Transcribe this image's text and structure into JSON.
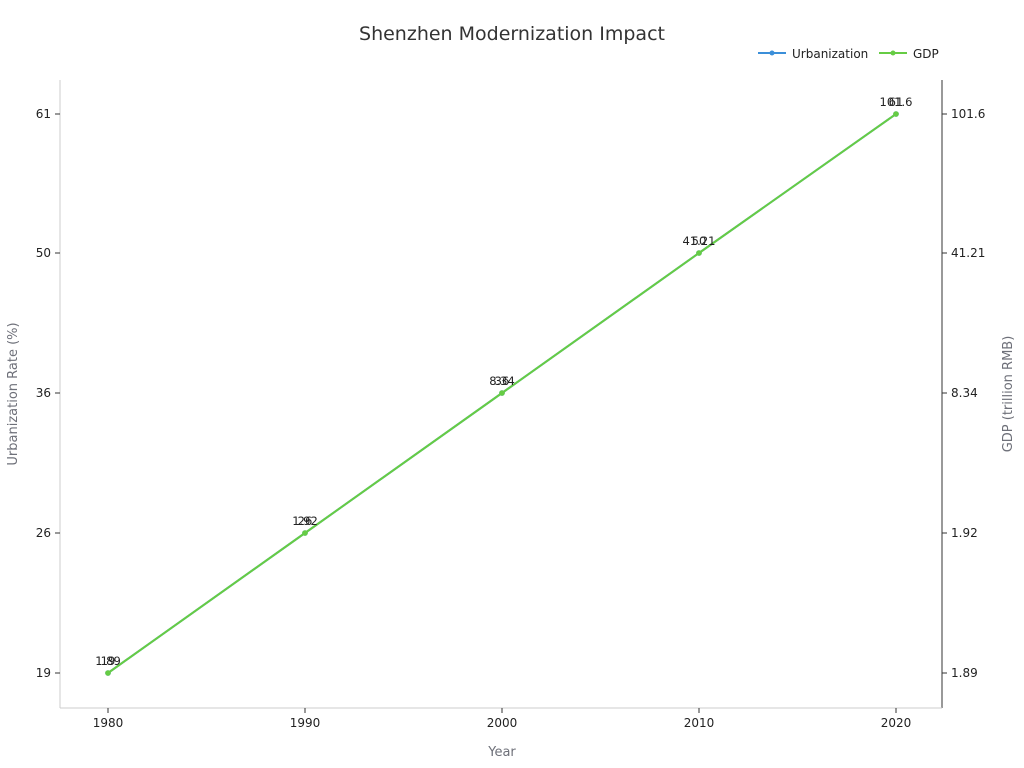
{
  "chart_data": {
    "type": "line",
    "title": "Shenzhen Modernization Impact",
    "xlabel": "Year",
    "ylabel_left": "Urbanization Rate (%)",
    "ylabel_right": "GDP (trillion RMB)",
    "categories": [
      "1980",
      "1990",
      "2000",
      "2010",
      "2020"
    ],
    "left_ticks": [
      "19",
      "26",
      "36",
      "50",
      "61"
    ],
    "right_ticks": [
      "1.89",
      "1.92",
      "8.34",
      "41.21",
      "101.6"
    ],
    "legend_position": "top-right",
    "grid": false,
    "series": [
      {
        "name": "Urbanization",
        "axis": "left",
        "color": "#3b8fd9",
        "values": [
          19,
          26,
          36,
          50,
          61
        ],
        "labels": [
          "19",
          "26",
          "36",
          "50",
          "61"
        ]
      },
      {
        "name": "GDP",
        "axis": "right",
        "color": "#66cc44",
        "values": [
          1.89,
          1.92,
          8.34,
          41.21,
          101.6
        ],
        "labels": [
          "1.89",
          "1.92",
          "8.34",
          "41.21",
          "101.6"
        ]
      }
    ]
  }
}
